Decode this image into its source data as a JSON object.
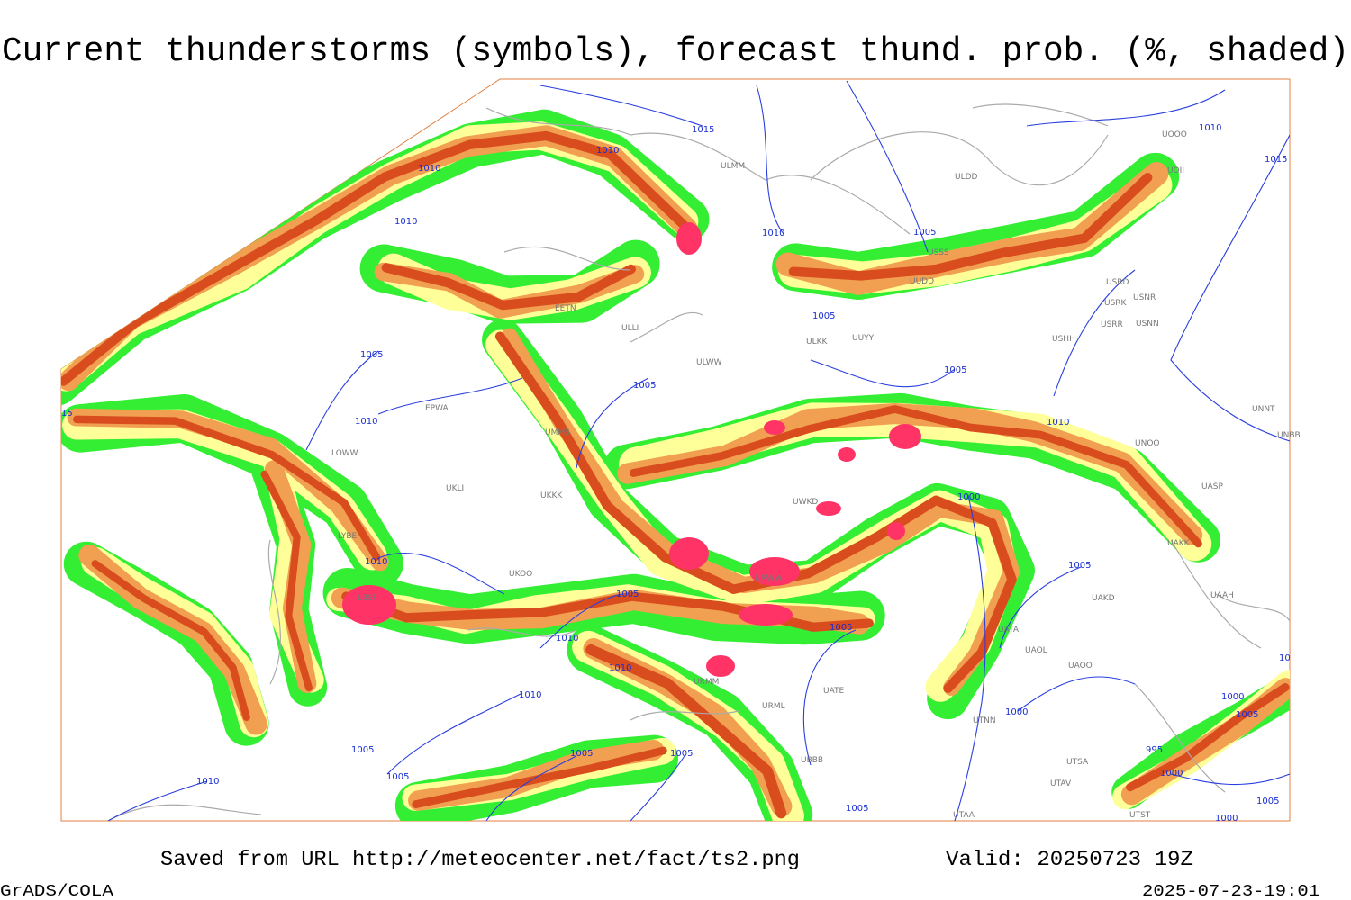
{
  "header": {
    "title": "Current thunderstorms (symbols), forecast thund. prob. (%, shaded)"
  },
  "footer": {
    "source": "Saved from URL http://meteocenter.net/fact/ts2.png",
    "valid": "Valid: 20250723 19Z",
    "software": "GrADS/COLA",
    "timestamp": "2025-07-23-19:01"
  },
  "map": {
    "stations": [
      "ULMM",
      "ULDD",
      "UUYY",
      "ULKK",
      "USHH",
      "USRD",
      "USRK",
      "USNR",
      "USRR",
      "USNN",
      "UNNT",
      "UNBB",
      "UNOO",
      "UASP",
      "UAKK",
      "UAAH",
      "UAKD",
      "UATA",
      "UAOL",
      "UAOO",
      "UTNN",
      "UTAV",
      "UTSA",
      "UTAA",
      "UTST",
      "UATE",
      "URML",
      "UBBB",
      "LBSF",
      "LYBE",
      "UKOO",
      "UKKK",
      "ULLI",
      "ULWW",
      "EETN",
      "UMMS",
      "EPWA",
      "LOWW",
      "UKLI",
      "URWW",
      "URMM",
      "UOII",
      "UOOO",
      "USSS",
      "UUDD",
      "UWKD"
    ],
    "isobar_labels": [
      "1015",
      "1010",
      "1010",
      "1010",
      "1010",
      "1005",
      "1005",
      "1005",
      "1005",
      "1005",
      "1010",
      "1010",
      "1000",
      "1005",
      "1010",
      "1005",
      "1005",
      "1010",
      "1010",
      "1010",
      "1005",
      "1005",
      "1005",
      "1005",
      "1010",
      "1005",
      "1000",
      "1000",
      "1005",
      "995",
      "1000",
      "1005",
      "1000",
      "1010",
      "1015",
      "15",
      "10"
    ]
  }
}
